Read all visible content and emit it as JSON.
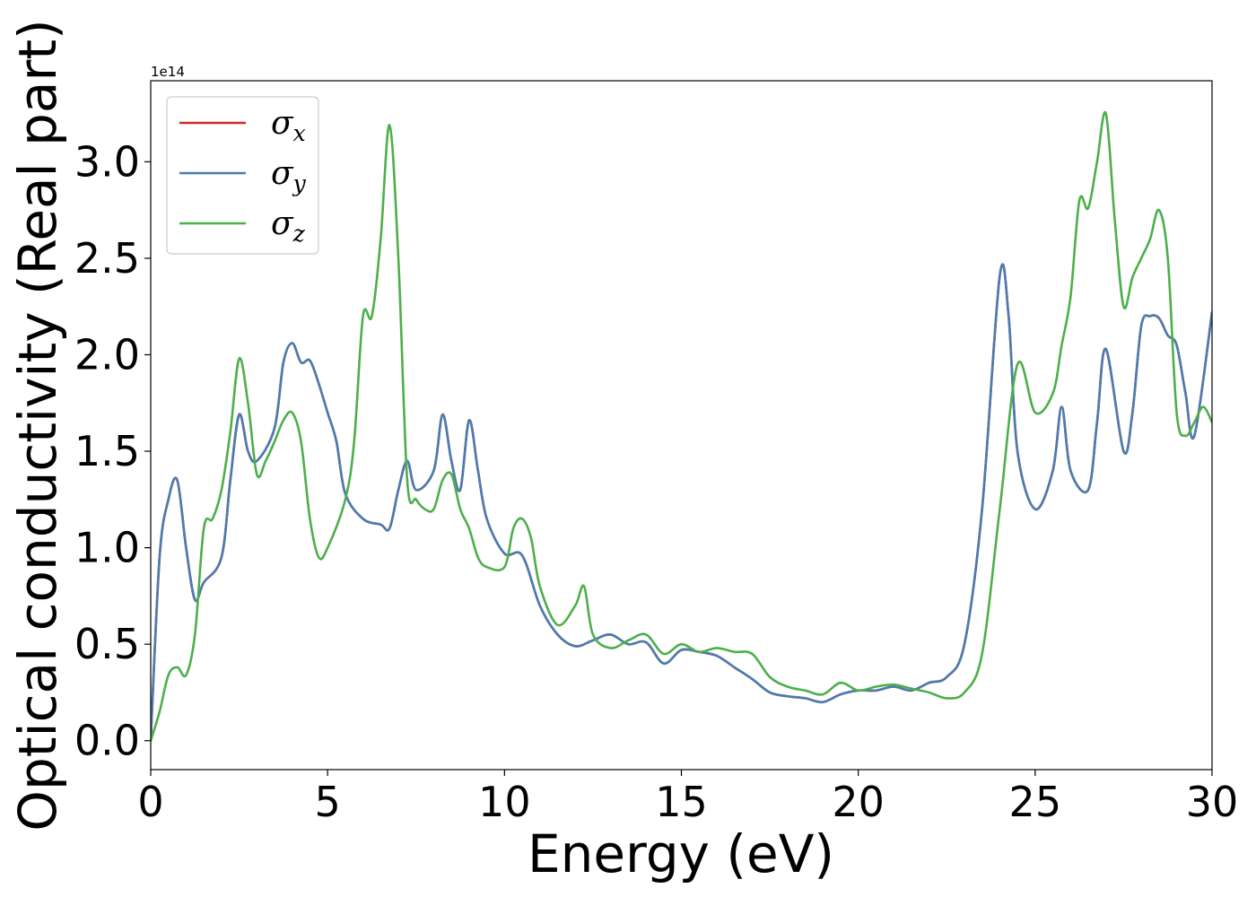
{
  "chart_data": {
    "type": "line",
    "title": "",
    "xlabel": "Energy (eV)",
    "ylabel": "Optical conductivity (Real part)",
    "y_offset_text": "1e14",
    "xlim": [
      0,
      30
    ],
    "ylim": [
      -0.15,
      3.42
    ],
    "x_ticks": [
      0,
      5,
      10,
      15,
      20,
      25,
      30
    ],
    "x_tick_labels": [
      "0",
      "5",
      "10",
      "15",
      "20",
      "25",
      "30"
    ],
    "y_ticks": [
      0.0,
      0.5,
      1.0,
      1.5,
      2.0,
      2.5,
      3.0
    ],
    "y_tick_labels": [
      "0.0",
      "0.5",
      "1.0",
      "1.5",
      "2.0",
      "2.5",
      "3.0"
    ],
    "grid": false,
    "legend_position": "top-left",
    "series": [
      {
        "name": "σx",
        "name_base": "σ",
        "name_sub": "x",
        "color": "#d62728",
        "x": [
          0.0,
          0.25,
          0.5,
          0.75,
          1.0,
          1.25,
          1.5,
          2.0,
          2.25,
          2.5,
          2.75,
          3.0,
          3.5,
          3.75,
          4.0,
          4.25,
          4.5,
          4.75,
          5.0,
          5.25,
          5.5,
          6.0,
          6.5,
          6.75,
          7.0,
          7.25,
          7.5,
          8.0,
          8.25,
          8.5,
          8.75,
          9.0,
          9.25,
          9.5,
          10.0,
          10.5,
          11.0,
          11.5,
          12.0,
          12.5,
          13.0,
          13.5,
          14.0,
          14.5,
          15.0,
          15.5,
          16.0,
          16.5,
          17.0,
          17.5,
          18.0,
          18.5,
          19.0,
          19.5,
          20.0,
          20.5,
          21.0,
          21.5,
          22.0,
          22.5,
          23.0,
          23.5,
          24.0,
          24.25,
          24.5,
          25.0,
          25.5,
          25.75,
          26.0,
          26.5,
          26.75,
          27.0,
          27.5,
          27.75,
          28.0,
          28.25,
          28.5,
          28.75,
          29.0,
          29.25,
          29.5,
          30.0
        ],
        "y": [
          0.0,
          0.95,
          1.25,
          1.35,
          1.0,
          0.73,
          0.82,
          0.95,
          1.35,
          1.69,
          1.5,
          1.45,
          1.62,
          1.96,
          2.06,
          1.96,
          1.97,
          1.85,
          1.7,
          1.55,
          1.28,
          1.15,
          1.12,
          1.1,
          1.3,
          1.45,
          1.3,
          1.4,
          1.69,
          1.45,
          1.3,
          1.66,
          1.4,
          1.15,
          0.97,
          0.96,
          0.7,
          0.55,
          0.49,
          0.52,
          0.55,
          0.5,
          0.51,
          0.4,
          0.47,
          0.46,
          0.44,
          0.38,
          0.32,
          0.25,
          0.23,
          0.22,
          0.2,
          0.24,
          0.26,
          0.26,
          0.28,
          0.26,
          0.3,
          0.33,
          0.5,
          1.2,
          2.41,
          2.2,
          1.5,
          1.2,
          1.4,
          1.73,
          1.4,
          1.3,
          1.65,
          2.03,
          1.5,
          1.7,
          2.15,
          2.2,
          2.19,
          2.1,
          2.05,
          1.8,
          1.58,
          2.22
        ]
      },
      {
        "name": "σy",
        "name_base": "σ",
        "name_sub": "y",
        "color": "#4a7cb0",
        "x": [
          0.0,
          0.25,
          0.5,
          0.75,
          1.0,
          1.25,
          1.5,
          2.0,
          2.25,
          2.5,
          2.75,
          3.0,
          3.5,
          3.75,
          4.0,
          4.25,
          4.5,
          4.75,
          5.0,
          5.25,
          5.5,
          6.0,
          6.5,
          6.75,
          7.0,
          7.25,
          7.5,
          8.0,
          8.25,
          8.5,
          8.75,
          9.0,
          9.25,
          9.5,
          10.0,
          10.5,
          11.0,
          11.5,
          12.0,
          12.5,
          13.0,
          13.5,
          14.0,
          14.5,
          15.0,
          15.5,
          16.0,
          16.5,
          17.0,
          17.5,
          18.0,
          18.5,
          19.0,
          19.5,
          20.0,
          20.5,
          21.0,
          21.5,
          22.0,
          22.5,
          23.0,
          23.5,
          24.0,
          24.25,
          24.5,
          25.0,
          25.5,
          25.75,
          26.0,
          26.5,
          26.75,
          27.0,
          27.5,
          27.75,
          28.0,
          28.25,
          28.5,
          28.75,
          29.0,
          29.25,
          29.5,
          30.0
        ],
        "y": [
          0.0,
          0.95,
          1.25,
          1.35,
          1.0,
          0.73,
          0.82,
          0.95,
          1.35,
          1.69,
          1.5,
          1.45,
          1.62,
          1.96,
          2.06,
          1.96,
          1.97,
          1.85,
          1.7,
          1.55,
          1.28,
          1.15,
          1.12,
          1.1,
          1.3,
          1.45,
          1.3,
          1.4,
          1.69,
          1.45,
          1.3,
          1.66,
          1.4,
          1.15,
          0.97,
          0.96,
          0.7,
          0.55,
          0.49,
          0.52,
          0.55,
          0.5,
          0.51,
          0.4,
          0.47,
          0.46,
          0.44,
          0.38,
          0.32,
          0.25,
          0.23,
          0.22,
          0.2,
          0.24,
          0.26,
          0.26,
          0.28,
          0.26,
          0.3,
          0.33,
          0.5,
          1.2,
          2.41,
          2.2,
          1.5,
          1.2,
          1.4,
          1.73,
          1.4,
          1.3,
          1.65,
          2.03,
          1.5,
          1.7,
          2.15,
          2.2,
          2.19,
          2.1,
          2.05,
          1.8,
          1.58,
          2.22
        ]
      },
      {
        "name": "σz",
        "name_base": "σ",
        "name_sub": "z",
        "color": "#4daf4a",
        "x": [
          0.0,
          0.25,
          0.5,
          0.75,
          1.0,
          1.25,
          1.5,
          1.75,
          2.0,
          2.25,
          2.5,
          2.75,
          3.0,
          3.25,
          3.5,
          3.75,
          4.0,
          4.25,
          4.5,
          4.75,
          5.0,
          5.5,
          5.75,
          6.0,
          6.25,
          6.5,
          6.75,
          7.0,
          7.25,
          7.5,
          7.75,
          8.0,
          8.25,
          8.5,
          8.75,
          9.0,
          9.25,
          9.5,
          10.0,
          10.25,
          10.5,
          10.75,
          11.0,
          11.5,
          12.0,
          12.25,
          12.5,
          13.0,
          13.5,
          14.0,
          14.5,
          15.0,
          15.5,
          16.0,
          16.5,
          17.0,
          17.5,
          18.0,
          18.5,
          19.0,
          19.5,
          20.0,
          20.5,
          21.0,
          21.5,
          22.0,
          22.5,
          23.0,
          23.5,
          24.0,
          24.5,
          25.0,
          25.5,
          25.75,
          26.0,
          26.25,
          26.5,
          26.75,
          27.0,
          27.25,
          27.5,
          27.75,
          28.0,
          28.25,
          28.5,
          28.75,
          29.0,
          29.25,
          29.5,
          29.75,
          30.0
        ],
        "y": [
          0.0,
          0.15,
          0.34,
          0.38,
          0.34,
          0.55,
          1.1,
          1.15,
          1.3,
          1.6,
          1.98,
          1.75,
          1.38,
          1.45,
          1.55,
          1.66,
          1.7,
          1.55,
          1.15,
          0.95,
          1.0,
          1.25,
          1.55,
          2.2,
          2.2,
          2.6,
          3.19,
          2.5,
          1.35,
          1.25,
          1.2,
          1.2,
          1.35,
          1.38,
          1.2,
          1.1,
          0.95,
          0.9,
          0.9,
          1.1,
          1.15,
          1.05,
          0.8,
          0.6,
          0.7,
          0.8,
          0.55,
          0.48,
          0.52,
          0.55,
          0.45,
          0.5,
          0.46,
          0.48,
          0.46,
          0.45,
          0.33,
          0.28,
          0.26,
          0.24,
          0.3,
          0.26,
          0.28,
          0.29,
          0.27,
          0.25,
          0.22,
          0.25,
          0.45,
          1.2,
          1.95,
          1.7,
          1.8,
          2.05,
          2.3,
          2.8,
          2.76,
          3.0,
          3.25,
          2.7,
          2.25,
          2.4,
          2.5,
          2.6,
          2.75,
          2.5,
          1.7,
          1.58,
          1.65,
          1.73,
          1.65
        ]
      }
    ]
  }
}
